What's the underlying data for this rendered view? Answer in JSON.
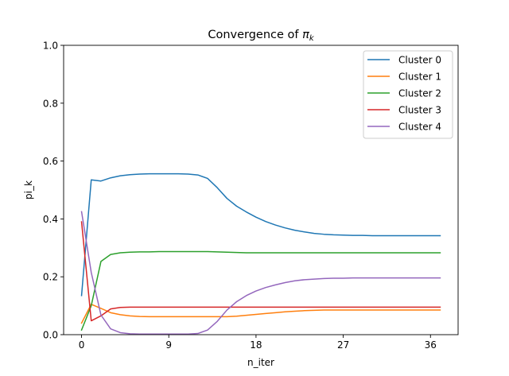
{
  "chart_data": {
    "type": "line",
    "title": "Convergence of πk",
    "title_main": "Convergence of ",
    "title_symbol": "π",
    "title_subscript": "k",
    "xlabel": "n_iter",
    "ylabel": "pi_k",
    "xlim": [
      -1.85,
      38.85
    ],
    "ylim": [
      0.0,
      1.0
    ],
    "xticks": [
      0,
      9,
      18,
      27,
      36
    ],
    "xtick_labels": [
      "0",
      "9",
      "18",
      "27",
      "36"
    ],
    "yticks": [
      0.0,
      0.2,
      0.4,
      0.6,
      0.8,
      1.0
    ],
    "ytick_labels": [
      "0.0",
      "0.2",
      "0.4",
      "0.6",
      "0.8",
      "1.0"
    ],
    "legend_position": "top-right",
    "grid": false,
    "x": [
      0,
      1,
      2,
      3,
      4,
      5,
      6,
      7,
      8,
      9,
      10,
      11,
      12,
      13,
      14,
      15,
      16,
      17,
      18,
      19,
      20,
      21,
      22,
      23,
      24,
      25,
      26,
      27,
      28,
      29,
      30,
      31,
      32,
      33,
      34,
      35,
      36,
      37
    ],
    "series": [
      {
        "name": "Cluster 0",
        "color": "#1f77b4",
        "values": [
          0.135,
          0.535,
          0.531,
          0.542,
          0.549,
          0.553,
          0.555,
          0.556,
          0.556,
          0.556,
          0.556,
          0.555,
          0.552,
          0.54,
          0.508,
          0.471,
          0.444,
          0.424,
          0.406,
          0.391,
          0.379,
          0.369,
          0.361,
          0.355,
          0.35,
          0.347,
          0.345,
          0.344,
          0.343,
          0.343,
          0.342,
          0.342,
          0.342,
          0.342,
          0.342,
          0.342,
          0.342,
          0.342
        ]
      },
      {
        "name": "Cluster 1",
        "color": "#ff7f0e",
        "values": [
          0.04,
          0.105,
          0.091,
          0.076,
          0.069,
          0.065,
          0.063,
          0.062,
          0.062,
          0.062,
          0.062,
          0.062,
          0.062,
          0.062,
          0.062,
          0.062,
          0.064,
          0.067,
          0.07,
          0.073,
          0.076,
          0.079,
          0.081,
          0.083,
          0.084,
          0.085,
          0.085,
          0.085,
          0.085,
          0.085,
          0.085,
          0.085,
          0.085,
          0.085,
          0.085,
          0.085,
          0.085,
          0.085
        ]
      },
      {
        "name": "Cluster 2",
        "color": "#2ca02c",
        "values": [
          0.016,
          0.1,
          0.253,
          0.277,
          0.283,
          0.285,
          0.286,
          0.286,
          0.287,
          0.287,
          0.287,
          0.287,
          0.287,
          0.287,
          0.286,
          0.285,
          0.284,
          0.283,
          0.283,
          0.283,
          0.283,
          0.283,
          0.283,
          0.283,
          0.283,
          0.283,
          0.283,
          0.283,
          0.283,
          0.283,
          0.283,
          0.283,
          0.283,
          0.283,
          0.283,
          0.283,
          0.283,
          0.283
        ]
      },
      {
        "name": "Cluster 3",
        "color": "#d62728",
        "values": [
          0.39,
          0.048,
          0.065,
          0.089,
          0.094,
          0.095,
          0.095,
          0.095,
          0.095,
          0.095,
          0.095,
          0.095,
          0.095,
          0.095,
          0.095,
          0.095,
          0.095,
          0.095,
          0.095,
          0.095,
          0.095,
          0.095,
          0.095,
          0.095,
          0.095,
          0.095,
          0.095,
          0.095,
          0.095,
          0.095,
          0.095,
          0.095,
          0.095,
          0.095,
          0.095,
          0.095,
          0.095,
          0.095
        ]
      },
      {
        "name": "Cluster 4",
        "color": "#9467bd",
        "values": [
          0.425,
          0.215,
          0.068,
          0.02,
          0.007,
          0.003,
          0.002,
          0.002,
          0.002,
          0.002,
          0.002,
          0.002,
          0.004,
          0.016,
          0.046,
          0.085,
          0.114,
          0.135,
          0.151,
          0.163,
          0.172,
          0.18,
          0.186,
          0.19,
          0.192,
          0.194,
          0.195,
          0.195,
          0.196,
          0.196,
          0.196,
          0.196,
          0.196,
          0.196,
          0.196,
          0.196,
          0.196,
          0.196
        ]
      }
    ]
  }
}
